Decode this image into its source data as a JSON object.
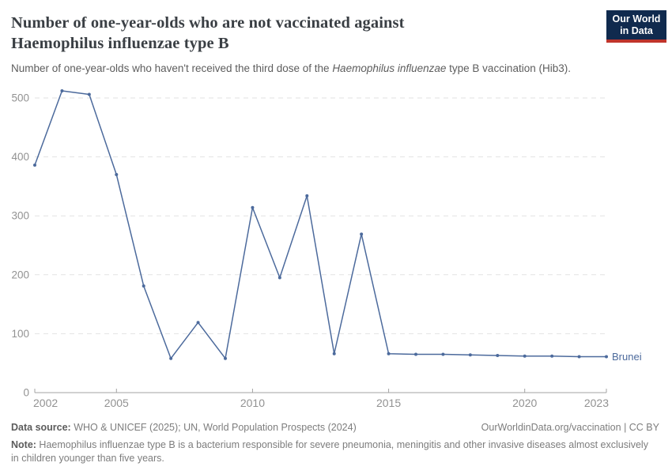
{
  "header": {
    "title": "Number of one-year-olds who are not vaccinated against Haemophilus influenzae type B",
    "subtitle_pre": "Number of one-year-olds who haven't received the third dose of the ",
    "subtitle_italic": "Haemophilus influenzae",
    "subtitle_post": " type B vaccination (Hib3)."
  },
  "logo": {
    "line1": "Our World",
    "line2": "in Data",
    "bg_color": "#102a4e",
    "stripe_color": "#c0342b"
  },
  "chart_data": {
    "type": "line",
    "title": "Number of one-year-olds who are not vaccinated against Haemophilus influenzae type B",
    "subtitle": "Number of one-year-olds who haven't received the third dose of the Haemophilus influenzae type B vaccination (Hib3).",
    "entity": "Brunei",
    "color": "#4c6a9c",
    "x": [
      2002,
      2003,
      2004,
      2005,
      2006,
      2007,
      2008,
      2009,
      2010,
      2011,
      2012,
      2013,
      2014,
      2015,
      2016,
      2017,
      2018,
      2019,
      2020,
      2021,
      2022,
      2023
    ],
    "values": [
      386,
      512,
      506,
      370,
      181,
      58,
      119,
      58,
      314,
      195,
      334,
      66,
      269,
      66,
      65,
      65,
      64,
      63,
      62,
      62,
      61,
      61
    ],
    "xticks": [
      2002,
      2005,
      2010,
      2015,
      2020,
      2023
    ],
    "yticks": [
      0,
      100,
      200,
      300,
      400,
      500
    ],
    "xlabel": "",
    "ylabel": "",
    "ylim": [
      0,
      540
    ],
    "xlim": [
      2002,
      2023
    ],
    "grid": "horizontal-dashed",
    "gridline_color": "#e2e2e2",
    "axis_color": "#a3a3a3",
    "tick_label_color": "#929292",
    "legend_position": "line-end-label"
  },
  "footer": {
    "datasource_label": "Data source:",
    "datasource_text": " WHO & UNICEF (2025); UN, World Population Prospects (2024)",
    "link_text": "OurWorldinData.org/vaccination | CC BY",
    "note_label": "Note:",
    "note_text": " Haemophilus influenzae type B is a bacterium responsible for severe pneumonia, meningitis and other invasive diseases almost exclusively in children younger than five years."
  }
}
